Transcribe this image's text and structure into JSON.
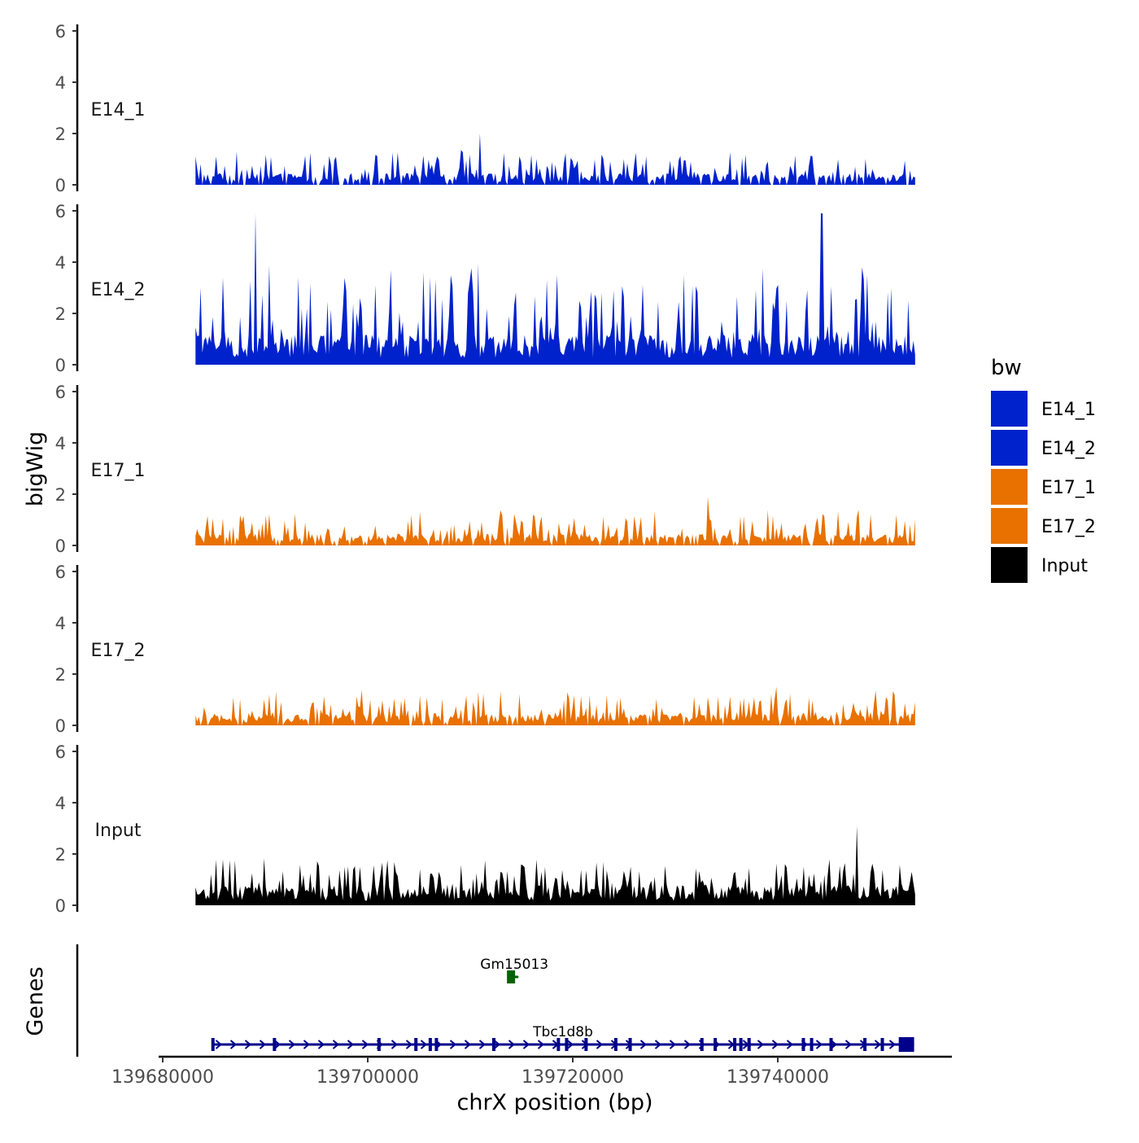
{
  "chart_data": {
    "type": "area",
    "title": "",
    "ylabel": "bigWig",
    "xlabel": "chrX position (bp)",
    "ylim": [
      0,
      6
    ],
    "yticks": [
      0,
      2,
      4,
      6
    ],
    "xlim": [
      139679700,
      139756500
    ],
    "xticks": [
      139680000,
      139700000,
      139720000,
      139740000
    ],
    "xtick_labels": [
      "139680000",
      "139700000",
      "139720000",
      "139740000"
    ],
    "data_range": [
      139683200,
      139753400
    ],
    "legend": {
      "title": "bw",
      "position": "right",
      "entries": [
        {
          "name": "E14_1",
          "color": "#0022CC"
        },
        {
          "name": "E14_2",
          "color": "#0022CC"
        },
        {
          "name": "E17_1",
          "color": "#E87100"
        },
        {
          "name": "E17_2",
          "color": "#E87100"
        },
        {
          "name": "Input",
          "color": "#000000"
        }
      ]
    },
    "series": [
      {
        "name": "E14_1",
        "color": "#0022CC",
        "baseline": 0.35,
        "spikiness": 0.45,
        "max_peak": 2.0,
        "peak_at": [
          139710900
        ],
        "gaps": true
      },
      {
        "name": "E14_2",
        "color": "#0022CC",
        "baseline": 0.9,
        "spikiness": 1.4,
        "max_peak": 5.9,
        "peak_at": [
          139689000,
          139744300
        ],
        "gaps": false
      },
      {
        "name": "E17_1",
        "color": "#E87100",
        "baseline": 0.35,
        "spikiness": 0.45,
        "max_peak": 1.9,
        "peak_at": [
          139733200
        ],
        "gaps": true
      },
      {
        "name": "E17_2",
        "color": "#E87100",
        "baseline": 0.35,
        "spikiness": 0.45,
        "max_peak": 1.5,
        "peak_at": [
          139739900
        ],
        "gaps": true
      },
      {
        "name": "Input",
        "color": "#000000",
        "baseline": 0.6,
        "spikiness": 0.6,
        "max_peak": 3.1,
        "peak_at": [
          139747700
        ],
        "gaps": false
      }
    ],
    "genes_panel": {
      "label": "Genes",
      "genes": [
        {
          "name": "Gm15013",
          "color": "#006400",
          "start": 139713900,
          "end": 139714700,
          "strand": "-",
          "row": 1
        },
        {
          "name": "Tbc1d8b",
          "color": "#00008B",
          "start": 139684800,
          "end": 139753300,
          "strand": "+",
          "row": 0,
          "exons": [
            139684900,
            139690900,
            139701100,
            139704700,
            139706100,
            139706700,
            139712300,
            139718600,
            139719400,
            139721300,
            139724200,
            139725600,
            139732600,
            139733900,
            139735800,
            139736400,
            139737200,
            139742500,
            139743300,
            139745200,
            139748500,
            139750200
          ],
          "utr_end": [
            139751800,
            139753300
          ]
        }
      ]
    }
  }
}
